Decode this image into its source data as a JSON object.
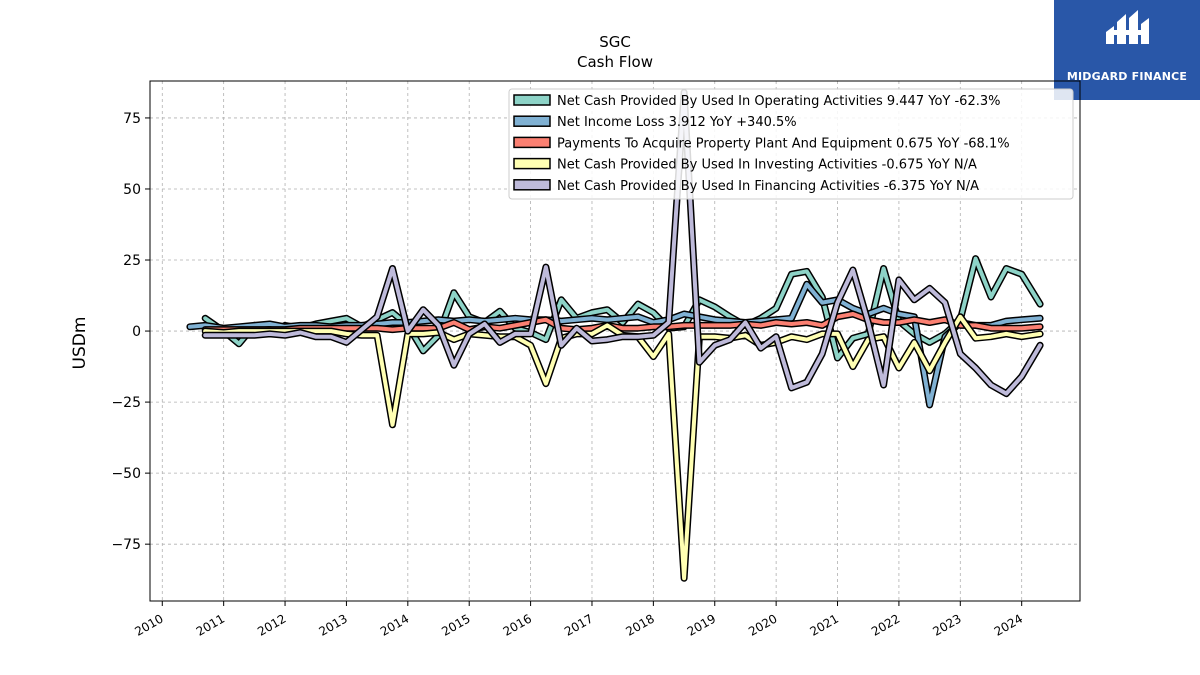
{
  "brand": {
    "name": "MIDGARD FINANCE",
    "bg_color": "#2957a8"
  },
  "chart_data": {
    "type": "line",
    "title": "SGC",
    "subtitle": "Cash Flow",
    "xlabel": "",
    "ylabel": "USDm",
    "xlim": [
      2009.8,
      2024.95
    ],
    "ylim": [
      -95,
      88
    ],
    "xticks": [
      2010,
      2011,
      2012,
      2013,
      2014,
      2015,
      2016,
      2017,
      2018,
      2019,
      2020,
      2021,
      2022,
      2023,
      2024
    ],
    "yticks": [
      -75,
      -50,
      -25,
      0,
      25,
      50,
      75
    ],
    "ytick_labels": [
      "−75",
      "−50",
      "−25",
      "0",
      "25",
      "50",
      "75"
    ],
    "grid": true,
    "legend_position": "top-right",
    "series": [
      {
        "name": "Net Cash Provided By Used In Operating Activities  9.447 YoY -62.3%",
        "color": "#8dd3c7",
        "points": [
          [
            2010.7,
            4.5
          ],
          [
            2011.0,
            0
          ],
          [
            2011.25,
            -4.5
          ],
          [
            2011.5,
            2
          ],
          [
            2011.75,
            -1
          ],
          [
            2012.0,
            2
          ],
          [
            2012.25,
            1
          ],
          [
            2012.5,
            2.5
          ],
          [
            2012.75,
            3.5
          ],
          [
            2013.0,
            4.5
          ],
          [
            2013.25,
            1.5
          ],
          [
            2013.5,
            4
          ],
          [
            2013.75,
            6.5
          ],
          [
            2014.0,
            2
          ],
          [
            2014.25,
            -7
          ],
          [
            2014.5,
            -1.5
          ],
          [
            2014.75,
            13.5
          ],
          [
            2015.0,
            5
          ],
          [
            2015.25,
            3
          ],
          [
            2015.5,
            7
          ],
          [
            2015.75,
            1
          ],
          [
            2016.0,
            -0.5
          ],
          [
            2016.25,
            -3
          ],
          [
            2016.5,
            11
          ],
          [
            2016.75,
            4.5
          ],
          [
            2017.0,
            6.5
          ],
          [
            2017.25,
            7.5
          ],
          [
            2017.5,
            3
          ],
          [
            2017.75,
            9.5
          ],
          [
            2018.0,
            6.5
          ],
          [
            2018.25,
            1
          ],
          [
            2018.5,
            1.5
          ],
          [
            2018.75,
            11
          ],
          [
            2019.0,
            8.5
          ],
          [
            2019.25,
            5
          ],
          [
            2019.5,
            2
          ],
          [
            2019.75,
            4.5
          ],
          [
            2020.0,
            8
          ],
          [
            2020.25,
            20
          ],
          [
            2020.5,
            21
          ],
          [
            2020.75,
            12
          ],
          [
            2021.0,
            -9.5
          ],
          [
            2021.25,
            -2.5
          ],
          [
            2021.5,
            -1
          ],
          [
            2021.75,
            22
          ],
          [
            2022.0,
            3.5
          ],
          [
            2022.25,
            -1
          ],
          [
            2022.5,
            -4
          ],
          [
            2022.75,
            -1
          ],
          [
            2023.0,
            4
          ],
          [
            2023.25,
            25.5
          ],
          [
            2023.5,
            12
          ],
          [
            2023.75,
            22
          ],
          [
            2024.0,
            20
          ],
          [
            2024.3,
            9.5
          ]
        ]
      },
      {
        "name": "Net Income Loss  3.912 YoY +340.5%",
        "color": "#80b1d3",
        "points": [
          [
            2010.45,
            1.5
          ],
          [
            2010.7,
            2
          ],
          [
            2011.0,
            1
          ],
          [
            2011.25,
            1.5
          ],
          [
            2011.5,
            2
          ],
          [
            2011.75,
            2.5
          ],
          [
            2012.0,
            1.5
          ],
          [
            2012.25,
            2
          ],
          [
            2012.5,
            2
          ],
          [
            2012.75,
            1.5
          ],
          [
            2013.0,
            2
          ],
          [
            2013.25,
            2
          ],
          [
            2013.5,
            2.5
          ],
          [
            2013.75,
            3
          ],
          [
            2014.0,
            3
          ],
          [
            2014.25,
            3.5
          ],
          [
            2014.5,
            4
          ],
          [
            2014.75,
            3.5
          ],
          [
            2015.0,
            4
          ],
          [
            2015.25,
            3.5
          ],
          [
            2015.5,
            4
          ],
          [
            2015.75,
            4.5
          ],
          [
            2016.0,
            4
          ],
          [
            2016.25,
            4
          ],
          [
            2016.5,
            3.5
          ],
          [
            2016.75,
            4
          ],
          [
            2017.0,
            4.5
          ],
          [
            2017.25,
            4
          ],
          [
            2017.5,
            4.5
          ],
          [
            2017.75,
            5
          ],
          [
            2018.0,
            3
          ],
          [
            2018.25,
            4
          ],
          [
            2018.5,
            6
          ],
          [
            2018.75,
            5
          ],
          [
            2019.0,
            4
          ],
          [
            2019.25,
            3.5
          ],
          [
            2019.5,
            3
          ],
          [
            2019.75,
            3.5
          ],
          [
            2020.0,
            4
          ],
          [
            2020.25,
            4.5
          ],
          [
            2020.5,
            16.5
          ],
          [
            2020.75,
            10
          ],
          [
            2021.0,
            11
          ],
          [
            2021.25,
            8
          ],
          [
            2021.5,
            6
          ],
          [
            2021.75,
            8
          ],
          [
            2022.0,
            6
          ],
          [
            2022.25,
            5
          ],
          [
            2022.5,
            -26
          ],
          [
            2022.75,
            -2
          ],
          [
            2023.0,
            3
          ],
          [
            2023.25,
            2
          ],
          [
            2023.5,
            2
          ],
          [
            2023.75,
            3.5
          ],
          [
            2024.0,
            4
          ],
          [
            2024.3,
            4.5
          ]
        ]
      },
      {
        "name": "Payments To Acquire Property Plant And Equipment  0.675 YoY -68.1%",
        "color": "#fb8072",
        "points": [
          [
            2010.7,
            0.5
          ],
          [
            2011.0,
            0.5
          ],
          [
            2011.25,
            0.5
          ],
          [
            2011.5,
            0.5
          ],
          [
            2011.75,
            0.5
          ],
          [
            2012.0,
            0.5
          ],
          [
            2012.25,
            1
          ],
          [
            2012.5,
            1
          ],
          [
            2012.75,
            1
          ],
          [
            2013.0,
            1
          ],
          [
            2013.25,
            1
          ],
          [
            2013.5,
            1
          ],
          [
            2013.75,
            0.5
          ],
          [
            2014.0,
            1
          ],
          [
            2014.25,
            1
          ],
          [
            2014.5,
            1
          ],
          [
            2014.75,
            3
          ],
          [
            2015.0,
            0.5
          ],
          [
            2015.25,
            1.5
          ],
          [
            2015.5,
            1
          ],
          [
            2015.75,
            2
          ],
          [
            2016.0,
            3
          ],
          [
            2016.25,
            4
          ],
          [
            2016.5,
            1
          ],
          [
            2016.75,
            0.5
          ],
          [
            2017.0,
            1
          ],
          [
            2017.25,
            2
          ],
          [
            2017.5,
            1
          ],
          [
            2017.75,
            1
          ],
          [
            2018.0,
            1.5
          ],
          [
            2018.25,
            1.5
          ],
          [
            2018.5,
            2
          ],
          [
            2018.75,
            2
          ],
          [
            2019.0,
            2
          ],
          [
            2019.25,
            2
          ],
          [
            2019.5,
            2.5
          ],
          [
            2019.75,
            2
          ],
          [
            2020.0,
            3
          ],
          [
            2020.25,
            2.5
          ],
          [
            2020.5,
            3
          ],
          [
            2020.75,
            2
          ],
          [
            2021.0,
            5
          ],
          [
            2021.25,
            6
          ],
          [
            2021.5,
            4
          ],
          [
            2021.75,
            3
          ],
          [
            2022.0,
            3
          ],
          [
            2022.25,
            4
          ],
          [
            2022.5,
            3
          ],
          [
            2022.75,
            4
          ],
          [
            2023.0,
            2
          ],
          [
            2023.25,
            2
          ],
          [
            2023.5,
            1
          ],
          [
            2023.75,
            1
          ],
          [
            2024.0,
            1
          ],
          [
            2024.3,
            1.5
          ]
        ]
      },
      {
        "name": "Net Cash Provided By Used In Investing Activities  -0.675 YoY N/A",
        "color": "#ffffb3",
        "points": [
          [
            2010.7,
            0
          ],
          [
            2011.0,
            -0.5
          ],
          [
            2011.25,
            0
          ],
          [
            2011.5,
            0
          ],
          [
            2011.75,
            0
          ],
          [
            2012.0,
            0
          ],
          [
            2012.25,
            0
          ],
          [
            2012.5,
            0
          ],
          [
            2012.75,
            0
          ],
          [
            2013.0,
            -1
          ],
          [
            2013.25,
            -1.5
          ],
          [
            2013.5,
            -1.5
          ],
          [
            2013.75,
            -33
          ],
          [
            2014.0,
            -1
          ],
          [
            2014.25,
            -1
          ],
          [
            2014.5,
            -0.5
          ],
          [
            2014.75,
            -3
          ],
          [
            2015.0,
            -1
          ],
          [
            2015.25,
            -1.5
          ],
          [
            2015.5,
            -2
          ],
          [
            2015.75,
            -2
          ],
          [
            2016.0,
            -5
          ],
          [
            2016.25,
            -18.5
          ],
          [
            2016.5,
            -2.5
          ],
          [
            2016.75,
            -1
          ],
          [
            2017.0,
            -1
          ],
          [
            2017.25,
            2
          ],
          [
            2017.5,
            -1.5
          ],
          [
            2017.75,
            -2
          ],
          [
            2018.0,
            -9
          ],
          [
            2018.25,
            -1
          ],
          [
            2018.5,
            -87
          ],
          [
            2018.75,
            -2
          ],
          [
            2019.0,
            -2
          ],
          [
            2019.25,
            -2.5
          ],
          [
            2019.5,
            -1.5
          ],
          [
            2019.75,
            -5
          ],
          [
            2020.0,
            -4
          ],
          [
            2020.25,
            -2
          ],
          [
            2020.5,
            -3
          ],
          [
            2020.75,
            -1
          ],
          [
            2021.0,
            -1
          ],
          [
            2021.25,
            -12.5
          ],
          [
            2021.5,
            -3
          ],
          [
            2021.75,
            -2
          ],
          [
            2022.0,
            -13
          ],
          [
            2022.25,
            -4
          ],
          [
            2022.5,
            -14
          ],
          [
            2022.75,
            -4
          ],
          [
            2023.0,
            5
          ],
          [
            2023.25,
            -2.5
          ],
          [
            2023.5,
            -2
          ],
          [
            2023.75,
            -1
          ],
          [
            2024.0,
            -2
          ],
          [
            2024.3,
            -1
          ]
        ]
      },
      {
        "name": "Net Cash Provided By Used In Financing Activities  -6.375 YoY N/A",
        "color": "#bebada",
        "points": [
          [
            2010.7,
            -1.5
          ],
          [
            2011.0,
            -1.5
          ],
          [
            2011.25,
            -1.5
          ],
          [
            2011.5,
            -1.5
          ],
          [
            2011.75,
            -1
          ],
          [
            2012.0,
            -1.5
          ],
          [
            2012.25,
            -0.5
          ],
          [
            2012.5,
            -2
          ],
          [
            2012.75,
            -2
          ],
          [
            2013.0,
            -4
          ],
          [
            2013.25,
            0.5
          ],
          [
            2013.5,
            5
          ],
          [
            2013.75,
            22
          ],
          [
            2014.0,
            0
          ],
          [
            2014.25,
            7.5
          ],
          [
            2014.5,
            2
          ],
          [
            2014.75,
            -12
          ],
          [
            2015.0,
            -1
          ],
          [
            2015.25,
            2.5
          ],
          [
            2015.5,
            -4
          ],
          [
            2015.75,
            -1
          ],
          [
            2016.0,
            -1
          ],
          [
            2016.25,
            22.5
          ],
          [
            2016.5,
            -5
          ],
          [
            2016.75,
            1
          ],
          [
            2017.0,
            -3.5
          ],
          [
            2017.25,
            -3
          ],
          [
            2017.5,
            -2
          ],
          [
            2017.75,
            -2
          ],
          [
            2018.0,
            -1.5
          ],
          [
            2018.25,
            3
          ],
          [
            2018.5,
            84
          ],
          [
            2018.75,
            -11
          ],
          [
            2019.0,
            -5
          ],
          [
            2019.25,
            -3
          ],
          [
            2019.5,
            3
          ],
          [
            2019.75,
            -6
          ],
          [
            2020.0,
            -2
          ],
          [
            2020.25,
            -20
          ],
          [
            2020.5,
            -18
          ],
          [
            2020.75,
            -8
          ],
          [
            2021.0,
            10
          ],
          [
            2021.25,
            21.5
          ],
          [
            2021.5,
            3
          ],
          [
            2021.75,
            -19
          ],
          [
            2022.0,
            18
          ],
          [
            2022.25,
            11
          ],
          [
            2022.5,
            15
          ],
          [
            2022.75,
            10
          ],
          [
            2023.0,
            -8
          ],
          [
            2023.25,
            -13
          ],
          [
            2023.5,
            -19
          ],
          [
            2023.75,
            -22
          ],
          [
            2024.0,
            -16
          ],
          [
            2024.3,
            -5
          ]
        ]
      }
    ]
  }
}
